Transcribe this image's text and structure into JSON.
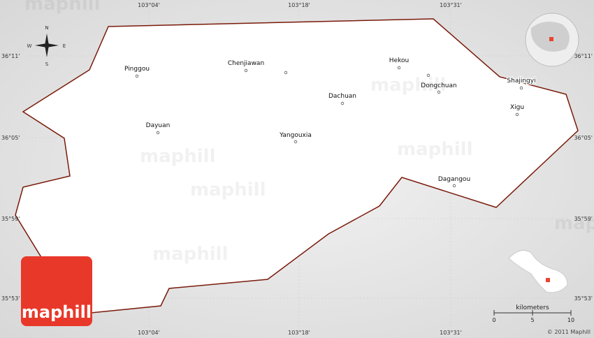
{
  "coords": {
    "top": [
      "103°04'",
      "103°18'",
      "103°31'"
    ],
    "bottom": [
      "103°04'",
      "103°18'",
      "103°31'"
    ],
    "left": [
      "36°11'",
      "36°05'",
      "35°59'",
      "35°53'"
    ],
    "right": [
      "36°11'",
      "36°05'",
      "35°59'",
      "35°53'"
    ]
  },
  "places": [
    "Pinggou",
    "Chenjiawan",
    "Hekou",
    "Dongchuan",
    "Dachuan",
    "Shajingyi",
    "Xigu",
    "Dayuan",
    "Yangouxia",
    "Dagangou"
  ],
  "compass": {
    "n": "N",
    "s": "S",
    "e": "E",
    "w": "W"
  },
  "scale": {
    "title": "kilometers",
    "ticks": [
      0,
      5,
      10
    ]
  },
  "copyright": "© 2011 Maphill",
  "logo": "maphill",
  "watermark": "maphill"
}
